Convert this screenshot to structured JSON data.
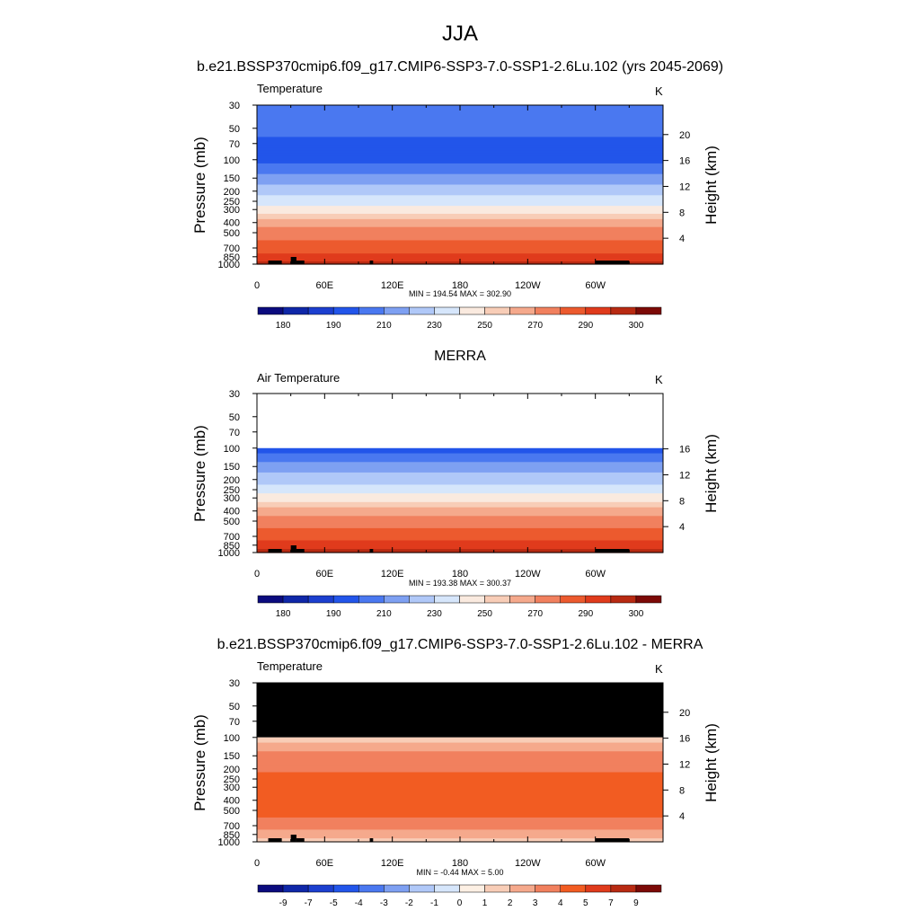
{
  "main_title": "JJA",
  "chart_data": [
    {
      "type": "heatmap",
      "panel_title": "b.e21.BSSP370cmip6.f09_g17.CMIP6-SSP3-7.0-SSP1-2.6Lu.102 (yrs 2045-2069)",
      "left_label": "Temperature",
      "units": "K",
      "ylabel": "Pressure (mb)",
      "y2label": "Height (km)",
      "y_scale": "log",
      "ylim": [
        1000,
        30
      ],
      "xlim": [
        0,
        360
      ],
      "x_ticks": [
        "0",
        "60E",
        "120E",
        "180",
        "120W",
        "60W"
      ],
      "y_ticks": [
        "30",
        "50",
        "70",
        "100",
        "150",
        "200",
        "250",
        "300",
        "400",
        "500",
        "700",
        "850",
        "1000"
      ],
      "y2_ticks": [
        "4",
        "8",
        "12",
        "16",
        "20"
      ],
      "stats": "MIN = 194.54  MAX = 302.90",
      "min": 194.54,
      "max": 302.9,
      "colorbar_labels": [
        "180",
        "190",
        "210",
        "230",
        "250",
        "270",
        "290",
        "300"
      ],
      "profile": [
        {
          "p": 30,
          "level": 4
        },
        {
          "p": 50,
          "level": 4
        },
        {
          "p": 70,
          "level": 3
        },
        {
          "p": 100,
          "level": 3
        },
        {
          "p": 150,
          "level": 5
        },
        {
          "p": 200,
          "level": 6
        },
        {
          "p": 250,
          "level": 7
        },
        {
          "p": 300,
          "level": 8
        },
        {
          "p": 400,
          "level": 10
        },
        {
          "p": 500,
          "level": 11
        },
        {
          "p": 700,
          "level": 12
        },
        {
          "p": 850,
          "level": 13
        },
        {
          "p": 1000,
          "level": 14
        }
      ]
    },
    {
      "type": "heatmap",
      "panel_title": "MERRA",
      "left_label": "Air Temperature",
      "units": "K",
      "ylabel": "Pressure (mb)",
      "y2label": "Height (km)",
      "y_scale": "log",
      "ylim": [
        1000,
        30
      ],
      "xlim": [
        0,
        360
      ],
      "x_ticks": [
        "0",
        "60E",
        "120E",
        "180",
        "120W",
        "60W"
      ],
      "y_ticks": [
        "30",
        "50",
        "70",
        "100",
        "150",
        "200",
        "250",
        "300",
        "400",
        "500",
        "700",
        "850",
        "1000"
      ],
      "y2_ticks": [
        "4",
        "8",
        "12",
        "16"
      ],
      "stats": "MIN = 193.38  MAX = 300.37",
      "min": 193.38,
      "max": 300.37,
      "data_top_mb": 100,
      "colorbar_labels": [
        "180",
        "190",
        "210",
        "230",
        "250",
        "270",
        "290",
        "300"
      ],
      "profile": [
        {
          "p": 100,
          "level": 3
        },
        {
          "p": 150,
          "level": 5
        },
        {
          "p": 200,
          "level": 6
        },
        {
          "p": 250,
          "level": 7
        },
        {
          "p": 300,
          "level": 8
        },
        {
          "p": 400,
          "level": 10
        },
        {
          "p": 500,
          "level": 11
        },
        {
          "p": 700,
          "level": 12
        },
        {
          "p": 850,
          "level": 13
        },
        {
          "p": 1000,
          "level": 14
        }
      ]
    },
    {
      "type": "heatmap",
      "panel_title": "b.e21.BSSP370cmip6.f09_g17.CMIP6-SSP3-7.0-SSP1-2.6Lu.102 - MERRA",
      "left_label": "Temperature",
      "units": "K",
      "ylabel": "Pressure (mb)",
      "y2label": "Height (km)",
      "y_scale": "log",
      "ylim": [
        1000,
        30
      ],
      "xlim": [
        0,
        360
      ],
      "x_ticks": [
        "0",
        "60E",
        "120E",
        "180",
        "120W",
        "60W"
      ],
      "y_ticks": [
        "30",
        "50",
        "70",
        "100",
        "150",
        "200",
        "250",
        "300",
        "400",
        "500",
        "700",
        "850",
        "1000"
      ],
      "y2_ticks": [
        "4",
        "8",
        "12",
        "16",
        "20"
      ],
      "stats": "MIN =  -0.44  MAX =   5.00",
      "min": -0.44,
      "max": 5.0,
      "no_data_above_mb": 100,
      "colorbar_labels": [
        "-9",
        "-7",
        "-5",
        "-4",
        "-3",
        "-2",
        "-1",
        "0",
        "1",
        "2",
        "3",
        "4",
        "5",
        "7",
        "9"
      ],
      "profile": [
        {
          "p": 100,
          "level": 9
        },
        {
          "p": 150,
          "level": 11
        },
        {
          "p": 300,
          "level": 12
        },
        {
          "p": 500,
          "level": 12
        },
        {
          "p": 700,
          "level": 11
        },
        {
          "p": 850,
          "level": 10
        },
        {
          "p": 1000,
          "level": 9
        }
      ]
    }
  ],
  "colors": {
    "temperature_palette": [
      "#0b0b7e",
      "#0f27a8",
      "#1c3fcf",
      "#2255ea",
      "#4a78f0",
      "#7ea0f2",
      "#b0c8f8",
      "#d6e6fb",
      "#faeadf",
      "#f8cdb7",
      "#f5a98c",
      "#f1805e",
      "#ec5a2e",
      "#e03b1c",
      "#b82a12",
      "#7c0a07"
    ],
    "difference_palette": [
      "#0b0b7e",
      "#0f27a8",
      "#1c3fcf",
      "#2255ea",
      "#4a78f0",
      "#7ea0f2",
      "#b0c8f8",
      "#d6e6fb",
      "#fdf0e4",
      "#f8cdb7",
      "#f5a98c",
      "#f1805e",
      "#f25c22",
      "#e03b1c",
      "#b82a12",
      "#7c0a07"
    ],
    "topography": "#000000",
    "no_data_diff": "#000000"
  }
}
